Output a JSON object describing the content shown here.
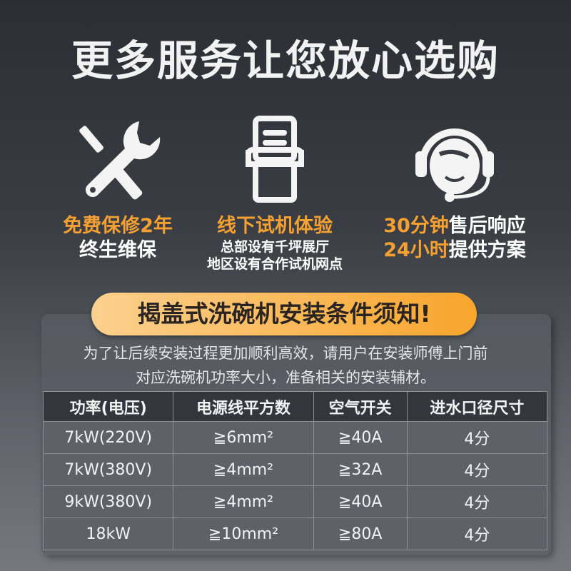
{
  "title": "更多服务让您放心选购",
  "features": [
    {
      "icon": "wrench-screwdriver-icon",
      "highlight": "免费保修2年",
      "line2": "终生维保"
    },
    {
      "icon": "dishwasher-icon",
      "highlight": "线下试机体验",
      "sub1": "总部设有千坪展厅",
      "sub2": "地区设有合作试机网点"
    },
    {
      "icon": "headset-support-icon",
      "hl1": "30分钟",
      "rest1": "售后响应",
      "hl2": "24小时",
      "rest2": "提供方案"
    }
  ],
  "notice": {
    "heading": "揭盖式洗碗机安装条件须知!",
    "intro1": "为了让后续安装过程更加顺利高效，请用户在安装师傅上门前",
    "intro2": "对应洗碗机功率大小，准备相关的安装辅材。"
  },
  "table": {
    "headers": [
      "功率(电压)",
      "电源线平方数",
      "空气开关",
      "进水口径尺寸"
    ],
    "rows": [
      [
        "7kW(220V)",
        "≧6mm²",
        "≧40A",
        "4分"
      ],
      [
        "7kW(380V)",
        "≧4mm²",
        "≧32A",
        "4分"
      ],
      [
        "9kW(380V)",
        "≧4mm²",
        "≧40A",
        "4分"
      ],
      [
        "18kW",
        "≧10mm²",
        "≧80A",
        "4分"
      ]
    ]
  },
  "colors": {
    "accent": "#f5a031"
  }
}
